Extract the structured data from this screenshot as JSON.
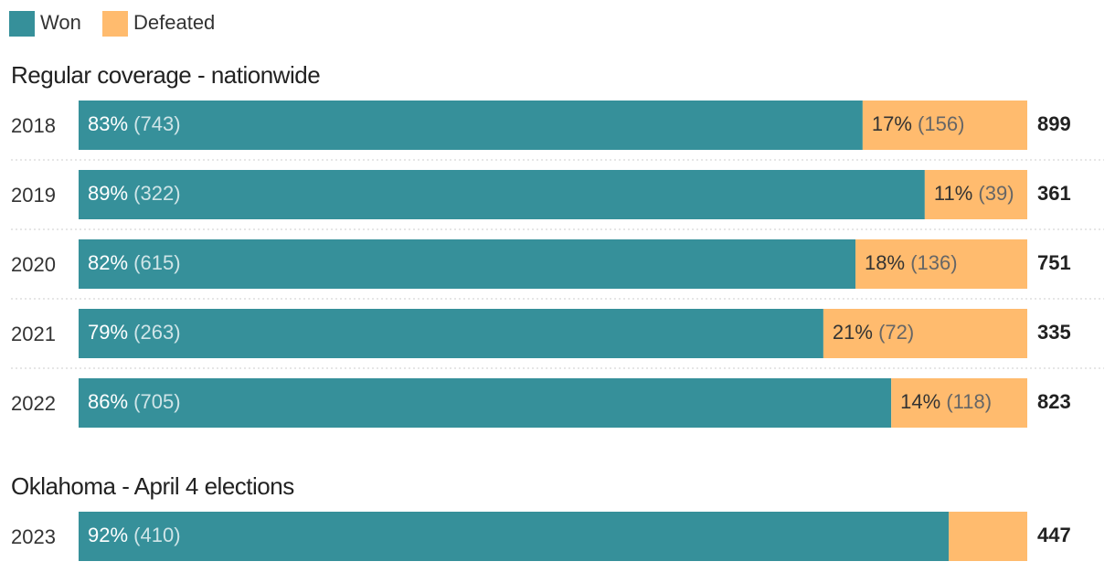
{
  "chart_data": [
    {
      "type": "stacked-bar",
      "title": "Regular coverage - nationwide",
      "categories": [
        "2018",
        "2019",
        "2020",
        "2021",
        "2022"
      ],
      "series": [
        {
          "name": "Won",
          "color": "#36909a",
          "values": [
            743,
            322,
            615,
            263,
            705
          ],
          "value_labels": [
            "(743)",
            "(322)",
            "(615)",
            "(263)",
            "(705)"
          ],
          "shares": [
            "83%",
            "89%",
            "82%",
            "79%",
            "86%"
          ]
        },
        {
          "name": "Defeated",
          "color": "#ffbb6e",
          "values": [
            156,
            39,
            136,
            72,
            118
          ],
          "value_labels": [
            "(156)",
            "(39)",
            "(136)",
            "(72)",
            "(118)"
          ],
          "shares": [
            "17%",
            "11%",
            "18%",
            "21%",
            "14%"
          ]
        }
      ],
      "totals": [
        899,
        361,
        751,
        335,
        823
      ]
    },
    {
      "type": "stacked-bar",
      "title": "Oklahoma - April 4 elections",
      "categories": [
        "2023"
      ],
      "series": [
        {
          "name": "Won",
          "color": "#36909a",
          "values": [
            410
          ],
          "value_labels": [
            "(410)"
          ],
          "shares": [
            "92%"
          ]
        },
        {
          "name": "Defeated",
          "color": "#ffbb6e",
          "values": [
            37
          ],
          "value_labels": [
            null
          ],
          "shares": [
            null
          ]
        }
      ],
      "totals": [
        447
      ]
    }
  ]
}
